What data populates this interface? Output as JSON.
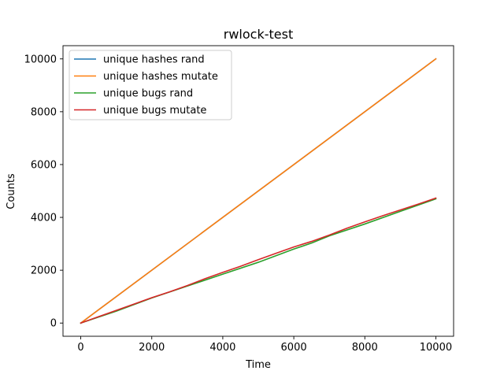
{
  "chart_data": {
    "type": "line",
    "title": "rwlock-test",
    "xlabel": "Time",
    "ylabel": "Counts",
    "xlim": [
      -500,
      10500
    ],
    "ylim": [
      -500,
      10500
    ],
    "xticks": [
      0,
      2000,
      4000,
      6000,
      8000,
      10000
    ],
    "yticks": [
      0,
      2000,
      4000,
      6000,
      8000,
      10000
    ],
    "grid": false,
    "legend_position": "top-left",
    "series": [
      {
        "name": "unique hashes rand",
        "color": "#1f77b4",
        "x": [
          0,
          10000
        ],
        "y": [
          0,
          10000
        ]
      },
      {
        "name": "unique hashes mutate",
        "color": "#ff7f0e",
        "x": [
          0,
          10000
        ],
        "y": [
          0,
          10000
        ]
      },
      {
        "name": "unique bugs rand",
        "color": "#2ca02c",
        "x": [
          0,
          1000,
          2000,
          3000,
          4000,
          5000,
          6000,
          6500,
          7000,
          8000,
          9000,
          10000
        ],
        "y": [
          0,
          450,
          950,
          1400,
          1850,
          2300,
          2800,
          3030,
          3300,
          3750,
          4230,
          4700
        ]
      },
      {
        "name": "unique bugs mutate",
        "color": "#d62728",
        "x": [
          0,
          500,
          1000,
          1500,
          2000,
          2500,
          3000,
          3500,
          4000,
          4500,
          5000,
          5500,
          6000,
          6500,
          7000,
          7500,
          8000,
          8500,
          9000,
          9500,
          10000
        ],
        "y": [
          0,
          240,
          480,
          720,
          960,
          1180,
          1420,
          1680,
          1920,
          2150,
          2400,
          2640,
          2880,
          3090,
          3330,
          3590,
          3830,
          4060,
          4280,
          4500,
          4730
        ]
      }
    ]
  }
}
